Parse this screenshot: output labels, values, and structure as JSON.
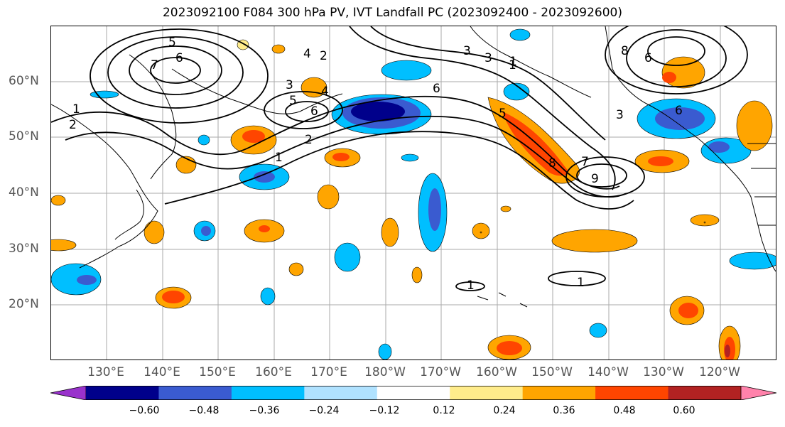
{
  "title": "2023092100 F084 300 hPa PV, IVT Landfall PC (2023092400 - 2023092600)",
  "lat_labels": [
    "60°N",
    "50°N",
    "40°N",
    "30°N",
    "20°N"
  ],
  "lon_labels": [
    "130°E",
    "140°E",
    "150°E",
    "160°E",
    "170°E",
    "180°W",
    "170°W",
    "160°W",
    "150°W",
    "140°W",
    "130°W",
    "120°W"
  ],
  "contour_labels": [
    "5",
    "6",
    "7",
    "4",
    "3",
    "5",
    "6",
    "2",
    "1",
    "2",
    "3",
    "3",
    "6",
    "1",
    "4",
    "1",
    "2",
    "8",
    "6",
    "5",
    "3",
    "8",
    "7",
    "6",
    "9",
    "1",
    "1",
    "1"
  ],
  "colorbar": {
    "tick_labels": [
      "−0.60",
      "−0.48",
      "−0.36",
      "−0.24",
      "−0.12",
      "0.12",
      "0.24",
      "0.36",
      "0.48",
      "0.60"
    ],
    "colors": [
      "#9932cc",
      "#00008b",
      "#3a5bd0",
      "#00bfff",
      "#b0e2ff",
      "#ffffff",
      "#ffec8b",
      "#ffa500",
      "#ff4500",
      "#b22222",
      "#ff82ab"
    ]
  },
  "colors": {
    "neg_light": "#b0e2ff",
    "neg_cyan": "#00bfff",
    "neg_blue": "#3a5bd0",
    "neg_dark": "#00008b",
    "pos_yellow": "#ffec8b",
    "pos_orange": "#ffa500",
    "pos_red": "#ff4500",
    "pos_dark": "#b22222"
  }
}
